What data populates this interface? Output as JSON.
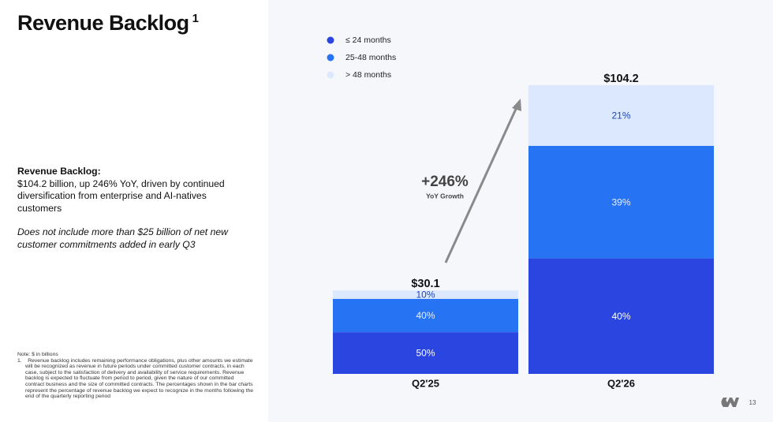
{
  "title": "Revenue Backlog",
  "title_marker": "1",
  "description": {
    "heading": "Revenue Backlog:",
    "body": "$104.2 billion, up 246% YoY, driven by continued diversification from enterprise and AI-natives customers",
    "note": "Does not include more than $25 billion of net new customer commitments added in early Q3"
  },
  "footnote": {
    "note": "Note: $ in billions",
    "item": "1.    Revenue backlog includes remaining performance obligations, plus other amounts we estimate will be recognized as revenue in future periods under committed customer contracts, in each case, subject to the satisfaction of delivery and availability of service requirements. Revenue backlog is expected to fluctuate from period to period, given the nature of our committed contract business and the size of committed contracts. The percentages shown in the bar charts represent the percentage of revenue backlog we expect to recognize in the months following the end of the quarterly reporting period"
  },
  "page_number": "13",
  "chart_data": {
    "type": "stacked_bar",
    "categories": [
      "Q2'25",
      "Q2'26"
    ],
    "totals": {
      "values": [
        30.1,
        104.2
      ],
      "value_labels": [
        "$30.1",
        "$104.2"
      ]
    },
    "series": [
      {
        "name": "≤ 24 months",
        "color": "#2a45e0",
        "label_color": "#ffffff",
        "values": [
          50,
          40
        ],
        "value_labels": [
          "50%",
          "40%"
        ]
      },
      {
        "name": "25-48 months",
        "color": "#2673f4",
        "label_color": "#e8efff",
        "values": [
          40,
          39
        ],
        "value_labels": [
          "40%",
          "39%"
        ]
      },
      {
        "name": "> 48 months",
        "color": "#dbe8fd",
        "label_color": "#1f47b8",
        "values": [
          10,
          21
        ],
        "value_labels": [
          "10%",
          "21%"
        ]
      }
    ],
    "annotation": {
      "value": "+246%",
      "label": "YoY Growth"
    }
  }
}
